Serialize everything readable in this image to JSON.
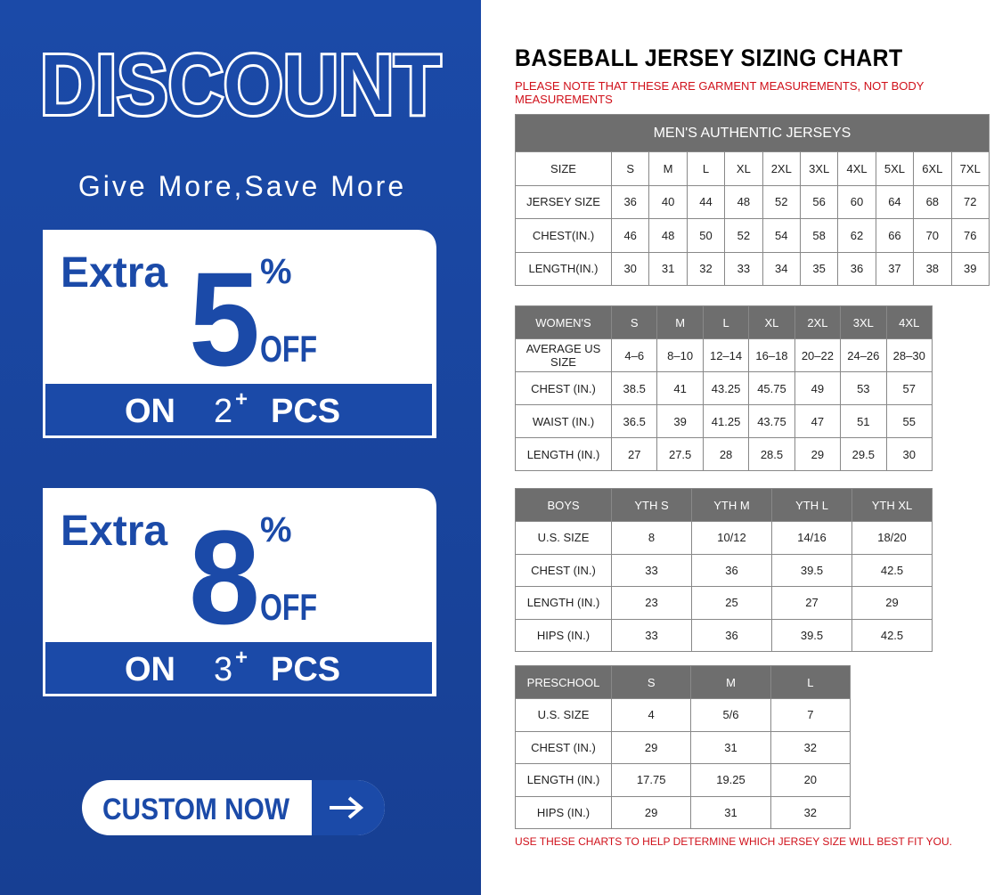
{
  "promo": {
    "title": "DISCOUNT",
    "tagline": "Give More,Save More",
    "offers": [
      {
        "prefix": "Extra",
        "percent": "5",
        "percent_sign": "%",
        "off": "OFF",
        "on": "ON",
        "qty": "2",
        "plus": "+",
        "unit": "PCS"
      },
      {
        "prefix": "Extra",
        "percent": "8",
        "percent_sign": "%",
        "off": "OFF",
        "on": "ON",
        "qty": "3",
        "plus": "+",
        "unit": "PCS"
      }
    ],
    "button": "CUSTOM NOW"
  },
  "sizing": {
    "title": "BASEBALL JERSEY SIZING CHART",
    "note": "PLEASE NOTE THAT THESE ARE GARMENT MEASUREMENTS, NOT BODY MEASUREMENTS",
    "tables": [
      {
        "caption": "MEN'S AUTHENTIC JERSEYS",
        "rows": [
          [
            "SIZE",
            "S",
            "M",
            "L",
            "XL",
            "2XL",
            "3XL",
            "4XL",
            "5XL",
            "6XL",
            "7XL"
          ],
          [
            "JERSEY SIZE",
            "36",
            "40",
            "44",
            "48",
            "52",
            "56",
            "60",
            "64",
            "68",
            "72"
          ],
          [
            "CHEST(IN.)",
            "46",
            "48",
            "50",
            "52",
            "54",
            "58",
            "62",
            "66",
            "70",
            "76"
          ],
          [
            "LENGTH(IN.)",
            "30",
            "31",
            "32",
            "33",
            "34",
            "35",
            "36",
            "37",
            "38",
            "39"
          ]
        ]
      },
      {
        "header": [
          "WOMEN'S",
          "S",
          "M",
          "L",
          "XL",
          "2XL",
          "3XL",
          "4XL"
        ],
        "rows": [
          [
            "AVERAGE US SIZE",
            "4–6",
            "8–10",
            "12–14",
            "16–18",
            "20–22",
            "24–26",
            "28–30"
          ],
          [
            "CHEST (IN.)",
            "38.5",
            "41",
            "43.25",
            "45.75",
            "49",
            "53",
            "57"
          ],
          [
            "WAIST (IN.)",
            "36.5",
            "39",
            "41.25",
            "43.75",
            "47",
            "51",
            "55"
          ],
          [
            "LENGTH (IN.)",
            "27",
            "27.5",
            "28",
            "28.5",
            "29",
            "29.5",
            "30"
          ]
        ]
      },
      {
        "header": [
          "BOYS",
          "YTH S",
          "YTH M",
          "YTH L",
          "YTH XL"
        ],
        "rows": [
          [
            "U.S. SIZE",
            "8",
            "10/12",
            "14/16",
            "18/20"
          ],
          [
            "CHEST (IN.)",
            "33",
            "36",
            "39.5",
            "42.5"
          ],
          [
            "LENGTH (IN.)",
            "23",
            "25",
            "27",
            "29"
          ],
          [
            "HIPS (IN.)",
            "33",
            "36",
            "39.5",
            "42.5"
          ]
        ]
      },
      {
        "header": [
          "PRESCHOOL",
          "S",
          "M",
          "L"
        ],
        "rows": [
          [
            "U.S. SIZE",
            "4",
            "5/6",
            "7"
          ],
          [
            "CHEST (IN.)",
            "29",
            "31",
            "32"
          ],
          [
            "LENGTH (IN.)",
            "17.75",
            "19.25",
            "20"
          ],
          [
            "HIPS (IN.)",
            "29",
            "31",
            "32"
          ]
        ]
      }
    ],
    "footer": "USE THESE CHARTS TO HELP DETERMINE WHICH JERSEY SIZE WILL BEST FIT YOU."
  }
}
